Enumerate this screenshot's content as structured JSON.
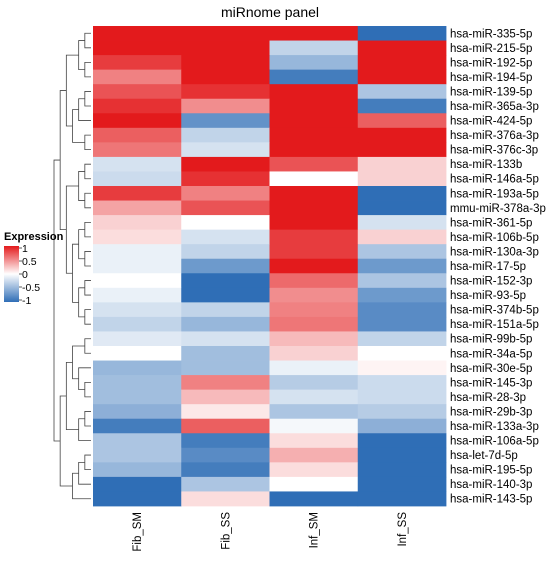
{
  "chart_data": {
    "type": "heatmap",
    "title": "miRnome panel",
    "columns": [
      "Fib_SM",
      "Fib_SS",
      "Inf_SM",
      "Inf_SS"
    ],
    "rows": [
      "hsa-miR-335-5p",
      "hsa-miR-215-5p",
      "hsa-miR-192-5p",
      "hsa-miR-194-5p",
      "hsa-miR-139-5p",
      "hsa-miR-365a-3p",
      "hsa-miR-424-5p",
      "hsa-miR-376a-3p",
      "hsa-miR-376c-3p",
      "hsa-miR-133b",
      "hsa-miR-146a-5p",
      "hsa-miR-193a-5p",
      "mmu-miR-378a-3p",
      "hsa-miR-361-5p",
      "hsa-miR-106b-5p",
      "hsa-miR-130a-3p",
      "hsa-miR-17-5p",
      "hsa-miR-152-3p",
      "hsa-miR-93-5p",
      "hsa-miR-374b-5p",
      "hsa-miR-151a-5p",
      "hsa-miR-99b-5p",
      "hsa-miR-34a-5p",
      "hsa-miR-30e-5p",
      "hsa-miR-145-3p",
      "hsa-miR-28-3p",
      "hsa-miR-29b-3p",
      "hsa-miR-133a-3p",
      "hsa-miR-106a-5p",
      "hsa-let-7d-5p",
      "hsa-miR-195-5p",
      "hsa-miR-140-3p",
      "hsa-miR-143-5p"
    ],
    "values": [
      [
        1,
        1,
        1,
        -1
      ],
      [
        1,
        1,
        -0.3,
        1
      ],
      [
        0.85,
        1,
        -0.5,
        1
      ],
      [
        0.55,
        1,
        -0.9,
        1
      ],
      [
        0.75,
        0.9,
        1,
        -0.4
      ],
      [
        0.9,
        0.5,
        1,
        -0.9
      ],
      [
        1,
        -0.75,
        1,
        0.7
      ],
      [
        0.7,
        -0.3,
        1,
        1
      ],
      [
        0.6,
        -0.2,
        1,
        1
      ],
      [
        -0.2,
        1,
        0.75,
        0.2
      ],
      [
        -0.25,
        0.9,
        0,
        0.2
      ],
      [
        0.85,
        0.55,
        1,
        -1
      ],
      [
        0.4,
        0.75,
        1,
        -1
      ],
      [
        0.2,
        0,
        1,
        -0.2
      ],
      [
        0.15,
        -0.2,
        0.85,
        0.2
      ],
      [
        -0.1,
        -0.3,
        0.85,
        -0.4
      ],
      [
        -0.1,
        -0.7,
        1,
        -0.7
      ],
      [
        0,
        -1,
        0.65,
        -0.4
      ],
      [
        -0.1,
        -1,
        0.5,
        -0.7
      ],
      [
        -0.2,
        -0.3,
        0.55,
        -0.8
      ],
      [
        -0.3,
        -0.5,
        0.6,
        -0.8
      ],
      [
        -0.15,
        -0.2,
        0.3,
        -0.3
      ],
      [
        0,
        -0.45,
        0.2,
        0
      ],
      [
        -0.5,
        -0.45,
        -0.1,
        0.05
      ],
      [
        -0.45,
        0.55,
        -0.35,
        -0.25
      ],
      [
        -0.45,
        0.3,
        -0.2,
        -0.25
      ],
      [
        -0.55,
        0.1,
        -0.4,
        -0.35
      ],
      [
        -0.9,
        0.7,
        -0.05,
        -0.55
      ],
      [
        -0.4,
        -0.9,
        0.15,
        -1
      ],
      [
        -0.4,
        -0.8,
        0.35,
        -1
      ],
      [
        -0.5,
        -0.9,
        0.15,
        -1
      ],
      [
        -1,
        -0.4,
        0,
        -1
      ],
      [
        -1,
        0.15,
        -1,
        -1
      ]
    ],
    "legend": {
      "title": "Expression",
      "ticks": [
        "1",
        "0.5",
        "0",
        "-0.5",
        "-1"
      ],
      "placement": "left"
    },
    "color_scale": {
      "low": "#2f6eb6",
      "mid": "#ffffff",
      "high": "#e31a1c",
      "range": [
        -1,
        1
      ]
    },
    "dendrogram": "rows, left"
  }
}
